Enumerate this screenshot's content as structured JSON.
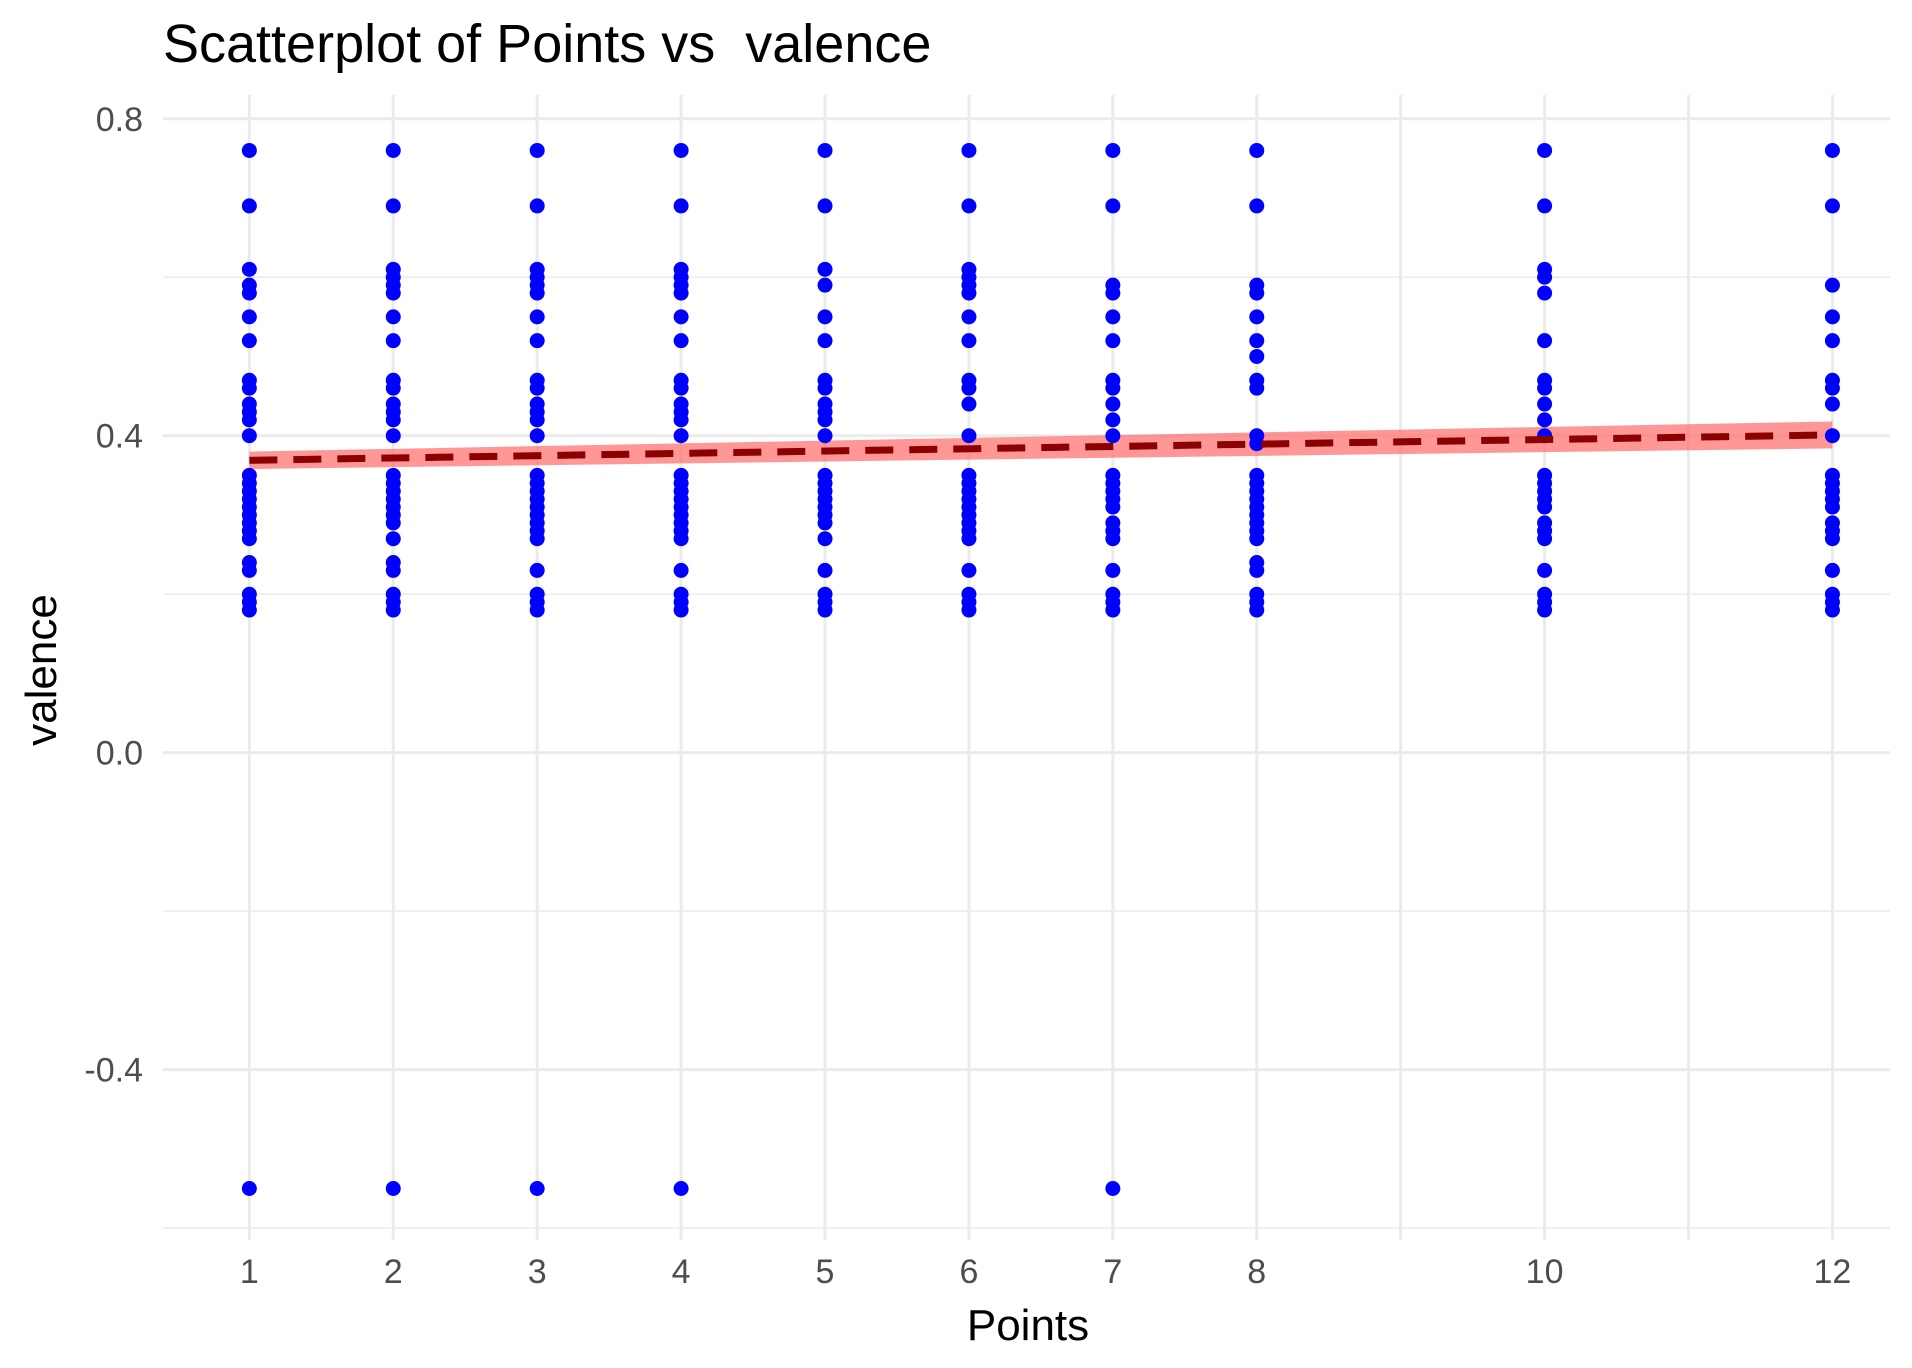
{
  "chart_data": {
    "type": "scatter",
    "title": "Scatterplot of Points vs  valence",
    "xlabel": "Points",
    "ylabel": "valence",
    "x_ticks": [
      1,
      2,
      3,
      4,
      5,
      6,
      7,
      8,
      10,
      12
    ],
    "y_ticks": [
      0.8,
      0.4,
      0.0,
      -0.4
    ],
    "y_tick_labels": [
      "0.8",
      "0.4",
      "0.0",
      "-0.4"
    ],
    "xlim": [
      0.4,
      12.4
    ],
    "ylim": [
      -0.615,
      0.83
    ],
    "grid": true,
    "colors": {
      "points": "#0000ff",
      "fit_line": "#8b0000",
      "confidence_band": "#ff6b6b"
    },
    "points": [
      {
        "x": 1,
        "y": [
          0.76,
          0.69,
          0.61,
          0.59,
          0.58,
          0.55,
          0.52,
          0.47,
          0.46,
          0.44,
          0.43,
          0.42,
          0.4,
          0.35,
          0.34,
          0.33,
          0.32,
          0.31,
          0.3,
          0.29,
          0.28,
          0.27,
          0.24,
          0.23,
          0.2,
          0.19,
          0.18,
          -0.55
        ]
      },
      {
        "x": 2,
        "y": [
          0.76,
          0.69,
          0.61,
          0.6,
          0.59,
          0.58,
          0.55,
          0.52,
          0.47,
          0.46,
          0.44,
          0.43,
          0.42,
          0.4,
          0.35,
          0.34,
          0.33,
          0.32,
          0.31,
          0.3,
          0.29,
          0.27,
          0.24,
          0.23,
          0.2,
          0.19,
          0.18,
          -0.55
        ]
      },
      {
        "x": 3,
        "y": [
          0.76,
          0.69,
          0.61,
          0.6,
          0.59,
          0.58,
          0.55,
          0.52,
          0.47,
          0.46,
          0.44,
          0.43,
          0.42,
          0.4,
          0.35,
          0.34,
          0.33,
          0.32,
          0.31,
          0.3,
          0.29,
          0.28,
          0.27,
          0.23,
          0.2,
          0.19,
          0.18,
          -0.55
        ]
      },
      {
        "x": 4,
        "y": [
          0.76,
          0.69,
          0.61,
          0.6,
          0.59,
          0.58,
          0.55,
          0.52,
          0.47,
          0.46,
          0.44,
          0.43,
          0.42,
          0.4,
          0.35,
          0.34,
          0.33,
          0.32,
          0.31,
          0.3,
          0.29,
          0.28,
          0.27,
          0.23,
          0.2,
          0.19,
          0.18,
          -0.55
        ]
      },
      {
        "x": 5,
        "y": [
          0.76,
          0.69,
          0.61,
          0.59,
          0.55,
          0.52,
          0.47,
          0.46,
          0.44,
          0.43,
          0.42,
          0.4,
          0.35,
          0.34,
          0.33,
          0.32,
          0.31,
          0.3,
          0.29,
          0.27,
          0.23,
          0.2,
          0.19,
          0.18
        ]
      },
      {
        "x": 6,
        "y": [
          0.76,
          0.69,
          0.61,
          0.6,
          0.59,
          0.58,
          0.55,
          0.52,
          0.47,
          0.46,
          0.44,
          0.4,
          0.35,
          0.34,
          0.33,
          0.32,
          0.31,
          0.3,
          0.29,
          0.28,
          0.27,
          0.23,
          0.2,
          0.19,
          0.18
        ]
      },
      {
        "x": 7,
        "y": [
          0.76,
          0.69,
          0.59,
          0.58,
          0.55,
          0.52,
          0.47,
          0.46,
          0.44,
          0.42,
          0.4,
          0.35,
          0.34,
          0.33,
          0.32,
          0.31,
          0.29,
          0.28,
          0.27,
          0.23,
          0.2,
          0.19,
          0.18,
          -0.55
        ]
      },
      {
        "x": 8,
        "y": [
          0.76,
          0.69,
          0.59,
          0.58,
          0.55,
          0.52,
          0.5,
          0.47,
          0.46,
          0.4,
          0.39,
          0.35,
          0.34,
          0.33,
          0.32,
          0.31,
          0.3,
          0.29,
          0.28,
          0.27,
          0.24,
          0.23,
          0.2,
          0.19,
          0.18
        ]
      },
      {
        "x": 10,
        "y": [
          0.76,
          0.69,
          0.61,
          0.6,
          0.58,
          0.52,
          0.47,
          0.46,
          0.44,
          0.42,
          0.4,
          0.35,
          0.34,
          0.33,
          0.32,
          0.31,
          0.29,
          0.28,
          0.27,
          0.23,
          0.2,
          0.19,
          0.18
        ]
      },
      {
        "x": 12,
        "y": [
          0.76,
          0.69,
          0.59,
          0.55,
          0.52,
          0.47,
          0.46,
          0.44,
          0.4,
          0.35,
          0.34,
          0.33,
          0.32,
          0.31,
          0.29,
          0.28,
          0.27,
          0.23,
          0.2,
          0.19,
          0.18
        ]
      }
    ],
    "fit_line": {
      "x": [
        1,
        12
      ],
      "y": [
        0.369,
        0.401
      ],
      "style": "dashed"
    },
    "confidence_band": {
      "x": [
        1,
        12
      ],
      "lower": [
        0.358,
        0.384
      ],
      "upper": [
        0.38,
        0.418
      ]
    }
  }
}
